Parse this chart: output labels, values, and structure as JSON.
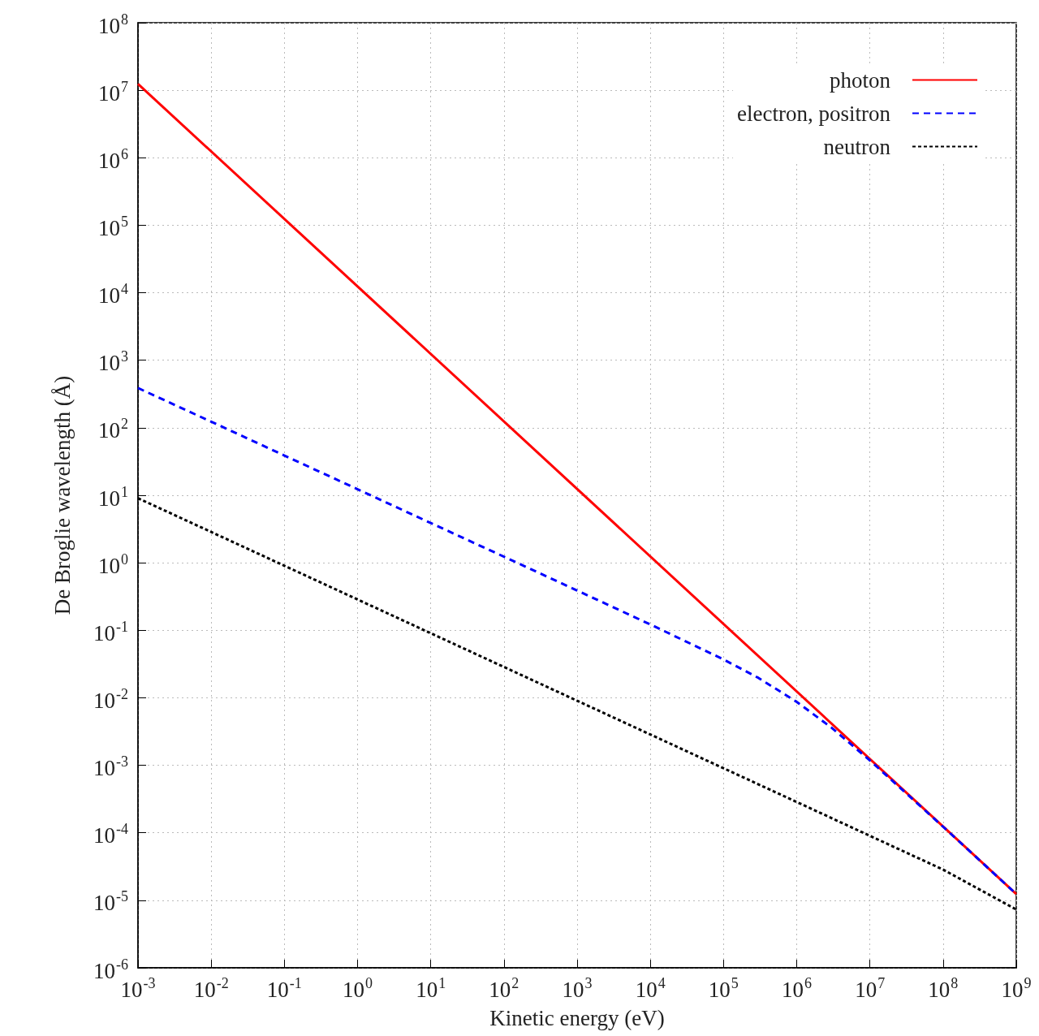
{
  "chart_data": {
    "type": "line",
    "xlabel": "Kinetic energy (eV)",
    "ylabel": "De Broglie wavelength (Å)",
    "log": "xy",
    "grid": true,
    "legend": "top right",
    "marker": "none",
    "xlim": [
      0.001,
      1000000000
    ],
    "ylim": [
      1e-06,
      100000000
    ],
    "xticks": [
      {
        "value": 0.001,
        "label": "10$^{-3}$"
      },
      {
        "value": 0.01,
        "label": "10$^{-2}$"
      },
      {
        "value": 0.1,
        "label": "10$^{-1}$"
      },
      {
        "value": 1,
        "label": "10$^{0}$"
      },
      {
        "value": 10,
        "label": "10$^{1}$"
      },
      {
        "value": 100,
        "label": "10$^{2}$"
      },
      {
        "value": 1000,
        "label": "10$^{3}$"
      },
      {
        "value": 10000,
        "label": "10$^{4}$"
      },
      {
        "value": 100000,
        "label": "10$^{5}$"
      },
      {
        "value": 1000000,
        "label": "10$^{6}$"
      },
      {
        "value": 10000000,
        "label": "10$^{7}$"
      },
      {
        "value": 100000000,
        "label": "10$^{8}$"
      },
      {
        "value": 1000000000,
        "label": "10$^{9}$"
      }
    ],
    "yticks": [
      {
        "value": 1e-06,
        "label": "10$^{-6}$"
      },
      {
        "value": 1e-05,
        "label": "10$^{-5}$"
      },
      {
        "value": 0.0001,
        "label": "10$^{-4}$"
      },
      {
        "value": 0.001,
        "label": "10$^{-3}$"
      },
      {
        "value": 0.01,
        "label": "10$^{-2}$"
      },
      {
        "value": 0.1,
        "label": "10$^{-1}$"
      },
      {
        "value": 1,
        "label": "10$^{0}$"
      },
      {
        "value": 10,
        "label": "10$^{1}$"
      },
      {
        "value": 100,
        "label": "10$^{2}$"
      },
      {
        "value": 1000,
        "label": "10$^{3}$"
      },
      {
        "value": 10000,
        "label": "10$^{4}$"
      },
      {
        "value": 100000,
        "label": "10$^{5}$"
      },
      {
        "value": 1000000,
        "label": "10$^{6}$"
      },
      {
        "value": 10000000,
        "label": "10$^{7}$"
      },
      {
        "value": 100000000,
        "label": "10$^{8}$"
      }
    ],
    "series": [
      {
        "name": "photon",
        "color": "#ff0000",
        "line_style": "solid",
        "x": [
          0.001,
          1000000000
        ],
        "values": [
          12400000,
          1.24e-05
        ]
      },
      {
        "name": "electron, positron",
        "color": "#0000ff",
        "line_style": "dashed",
        "x": [
          0.001,
          0.01,
          0.1,
          1,
          10,
          100,
          1000,
          10000,
          100000,
          300000,
          1000000,
          3000000,
          10000000,
          100000000,
          1000000000
        ],
        "values": [
          388,
          123,
          38.8,
          12.3,
          3.88,
          1.23,
          0.388,
          0.122,
          0.037,
          0.0197,
          0.0087,
          0.0036,
          0.00118,
          0.000123,
          1.24e-05
        ]
      },
      {
        "name": "neutron",
        "color": "#000000",
        "line_style": "dotted",
        "x": [
          0.001,
          0.01,
          0.1,
          1,
          10,
          100,
          1000,
          10000,
          100000,
          1000000,
          10000000,
          100000000,
          1000000000
        ],
        "values": [
          9.04,
          2.86,
          0.904,
          0.286,
          0.0904,
          0.0286,
          0.00904,
          0.00286,
          0.000904,
          0.000286,
          9.02e-05,
          2.85e-05,
          7.3e-06
        ]
      }
    ]
  }
}
